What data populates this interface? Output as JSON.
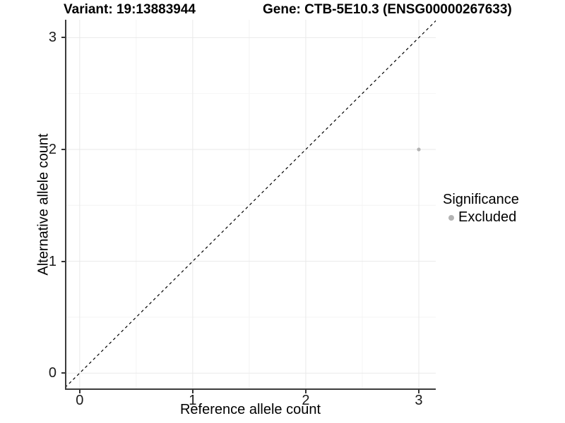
{
  "header": {
    "title_left": "Variant: 19:13883944",
    "title_right": "Gene: CTB-5E10.3 (ENSG00000267633)"
  },
  "chart_data": {
    "type": "scatter",
    "title_left": "Variant: 19:13883944",
    "title_right": "Gene: CTB-5E10.3 (ENSG00000267633)",
    "xlabel": "Reference allele count",
    "ylabel": "Alternative allele count",
    "xlim": [
      -0.13,
      3.15
    ],
    "ylim": [
      -0.15,
      3.16
    ],
    "xticks": [
      0,
      1,
      2,
      3
    ],
    "yticks": [
      0,
      1,
      2,
      3
    ],
    "minor_xticks": [
      0.5,
      1.5,
      2.5
    ],
    "minor_yticks": [
      0.5,
      1.5,
      2.5
    ],
    "grid": "major and minor gridlines on white background",
    "reference_line": {
      "kind": "identity y=x",
      "style": "dashed",
      "color": "#000000",
      "from": -0.2,
      "to": 3.3
    },
    "series": [
      {
        "name": "Excluded",
        "color": "#b3b3b3",
        "points": [
          {
            "x": 3,
            "y": 2
          }
        ]
      }
    ],
    "legend": {
      "title": "Significance",
      "position": "right",
      "items": [
        {
          "label": "Excluded",
          "color": "#b3b3b3"
        }
      ]
    }
  },
  "colors": {
    "background": "#ffffff",
    "axis_line": "#3c3c3c",
    "tick_mark": "#333333",
    "grid_major": "#e9e9e9",
    "grid_minor": "#f4f4f4",
    "text": "#000000",
    "point": "#b3b3b3"
  }
}
